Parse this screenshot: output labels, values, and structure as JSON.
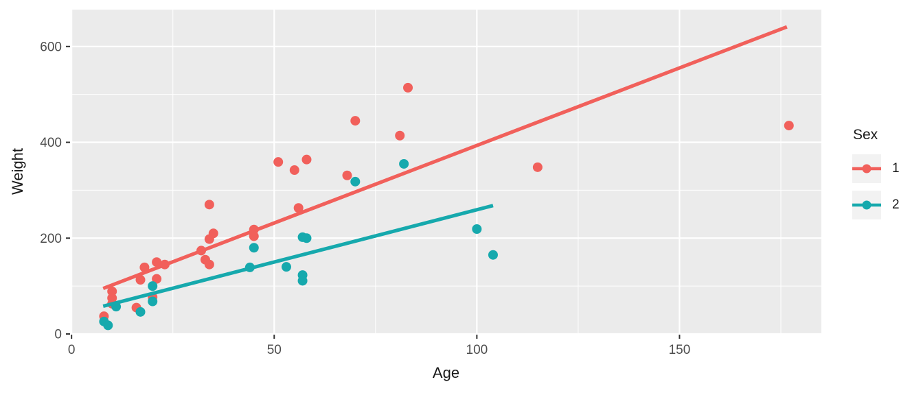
{
  "chart_data": {
    "type": "scatter",
    "title": "",
    "xlabel": "Age",
    "ylabel": "Weight",
    "xlim": [
      -0.2,
      185
    ],
    "ylim": [
      0,
      677
    ],
    "x_ticks": [
      0,
      50,
      100,
      150
    ],
    "x_minor_ticks": [
      25,
      75,
      125,
      175
    ],
    "y_ticks": [
      0,
      200,
      400,
      600
    ],
    "y_minor_ticks": [
      100,
      300,
      500
    ],
    "grid": true,
    "panel_bg": "#ebebeb",
    "grid_color": "#ffffff",
    "legend_key_bg": "#f2f2f2",
    "tick_color": "#333333",
    "legend": {
      "title": "Sex",
      "position": "right",
      "entries": [
        {
          "label": "1",
          "color": "#f1605b"
        },
        {
          "label": "2",
          "color": "#16a9ad"
        }
      ]
    },
    "series": [
      {
        "name": "1",
        "color": "#f1605b",
        "points": [
          [
            8,
            37
          ],
          [
            10,
            89
          ],
          [
            10,
            75
          ],
          [
            10,
            63
          ],
          [
            16,
            55
          ],
          [
            17,
            113
          ],
          [
            18,
            139
          ],
          [
            20,
            77
          ],
          [
            21,
            115
          ],
          [
            21,
            150
          ],
          [
            23,
            145
          ],
          [
            32,
            174
          ],
          [
            33,
            155
          ],
          [
            34,
            145
          ],
          [
            34,
            270
          ],
          [
            34,
            198
          ],
          [
            35,
            210
          ],
          [
            45,
            218
          ],
          [
            45,
            204
          ],
          [
            51,
            359
          ],
          [
            55,
            342
          ],
          [
            56,
            263
          ],
          [
            58,
            364
          ],
          [
            68,
            331
          ],
          [
            70,
            445
          ],
          [
            81,
            414
          ],
          [
            83,
            514
          ],
          [
            115,
            348
          ],
          [
            177,
            435
          ]
        ]
      },
      {
        "name": "2",
        "color": "#16a9ad",
        "points": [
          [
            8,
            26
          ],
          [
            9,
            18
          ],
          [
            11,
            57
          ],
          [
            17,
            46
          ],
          [
            20,
            100
          ],
          [
            20,
            68
          ],
          [
            44,
            139
          ],
          [
            45,
            180
          ],
          [
            53,
            140
          ],
          [
            57,
            202
          ],
          [
            58,
            200
          ],
          [
            57,
            123
          ],
          [
            57,
            111
          ],
          [
            70,
            318
          ],
          [
            82,
            355
          ],
          [
            100,
            219
          ],
          [
            104,
            165
          ]
        ]
      }
    ],
    "trend_lines": [
      {
        "series": "1",
        "color": "#f1605b",
        "x0": 7.8,
        "y0": 95,
        "x1": 176.5,
        "y1": 641
      },
      {
        "series": "2",
        "color": "#16a9ad",
        "x0": 7.8,
        "y0": 58,
        "x1": 104,
        "y1": 268
      }
    ]
  }
}
